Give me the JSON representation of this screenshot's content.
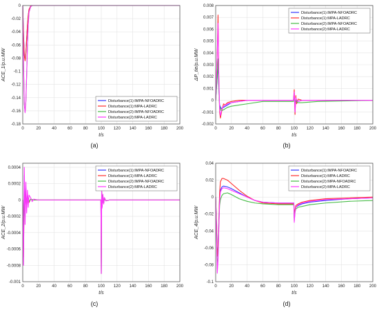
{
  "figure": {
    "colors": {
      "d1_nfoadrc": "#3333ff",
      "d1_ladrc": "#ff2a2a",
      "d2_nfoadrc": "#44bb44",
      "d2_ladrc": "#ff33ff"
    },
    "legend": [
      "Disturbance(1):IMPA-NFOADRC",
      "Disturbance(1):MPA-LADRC",
      "Disturbance(2):IMPA-NFOADRC",
      "Disturbance(2):MPA-LADRC"
    ],
    "legend_b": [
      "Disturbance(1):IMPA-NFOADRC",
      "Disturbance(1):MPA-LADRC",
      "Disturbance(2):IMPA-NFOADRC",
      "Disturbance(2):MPA-LADRC"
    ],
    "legend_d": [
      "Disturbance(1):IMPA-NFOADRC",
      "Disturbance(1):MPA-LADRC",
      "Disturbance(2):MPA-NFOADRC",
      "Disturbance(2):MPA-LADRC"
    ]
  },
  "chart_data": [
    {
      "id": "a",
      "type": "line",
      "caption": "(a)",
      "xlabel": "t/s",
      "ylabel": "ACE_1/p.u.MW",
      "xlim": [
        0,
        200
      ],
      "ylim": [
        -0.18,
        0
      ],
      "xticks": [
        0,
        20,
        40,
        60,
        80,
        100,
        120,
        140,
        160,
        180,
        200
      ],
      "yticks": [
        0,
        -0.02,
        -0.04,
        -0.06,
        -0.08,
        -0.1,
        -0.12,
        -0.14,
        -0.16,
        -0.18
      ],
      "legend_position": "bottom-right",
      "grid": true,
      "series": [
        {
          "name": "Disturbance(1):IMPA-NFOADRC",
          "color": "#3333ff",
          "x": [
            0,
            1,
            2,
            3,
            4,
            5,
            6,
            7,
            8,
            10,
            12,
            15,
            200
          ],
          "y": [
            0,
            -0.045,
            -0.075,
            -0.083,
            -0.072,
            -0.05,
            -0.03,
            -0.015,
            -0.006,
            -0.001,
            0,
            0,
            0
          ]
        },
        {
          "name": "Disturbance(1):MPA-LADRC",
          "color": "#ff2a2a",
          "x": [
            0,
            1,
            2,
            3,
            4,
            5,
            6,
            7,
            8,
            10,
            12,
            15,
            200
          ],
          "y": [
            0,
            -0.046,
            -0.076,
            -0.084,
            -0.073,
            -0.051,
            -0.03,
            -0.015,
            -0.006,
            -0.001,
            0,
            0,
            0
          ]
        },
        {
          "name": "Disturbance(2):IMPA-NFOADRC",
          "color": "#44bb44",
          "x": [
            0,
            1,
            2,
            3,
            4,
            5,
            6,
            7,
            8,
            10,
            12,
            15,
            200
          ],
          "y": [
            0,
            -0.09,
            -0.15,
            -0.162,
            -0.145,
            -0.105,
            -0.06,
            -0.028,
            -0.01,
            -0.002,
            0,
            0,
            0
          ]
        },
        {
          "name": "Disturbance(2):MPA-LADRC",
          "color": "#ff33ff",
          "x": [
            0,
            1,
            2,
            3,
            4,
            5,
            6,
            7,
            8,
            10,
            12,
            15,
            200
          ],
          "y": [
            0,
            -0.09,
            -0.15,
            -0.163,
            -0.146,
            -0.106,
            -0.061,
            -0.028,
            -0.01,
            -0.002,
            0,
            0,
            0
          ]
        }
      ]
    },
    {
      "id": "b",
      "type": "line",
      "caption": "(b)",
      "xlabel": "t/s",
      "ylabel": "ΔP_tie/p.u.MW",
      "xlim": [
        0,
        200
      ],
      "ylim": [
        -0.002,
        0.008
      ],
      "xticks": [
        0,
        20,
        40,
        60,
        80,
        100,
        120,
        140,
        160,
        180,
        200
      ],
      "yticks": [
        0.008,
        0.007,
        0.006,
        0.005,
        0.004,
        0.003,
        0.002,
        0.001,
        0,
        -0.001,
        -0.002
      ],
      "legend_position": "top-right",
      "grid": true,
      "series": [
        {
          "name": "Disturbance(1):IMPA-NFOADRC",
          "color": "#3333ff",
          "x": [
            0,
            2,
            3,
            4,
            5,
            7,
            10,
            15,
            20,
            30,
            40,
            60,
            99,
            100,
            101,
            102,
            104,
            110,
            130,
            200
          ],
          "y": [
            0,
            0.002,
            0.003,
            0.001,
            -0.0004,
            -0.0007,
            -0.0006,
            -0.0004,
            -0.0002,
            -0.0001,
            0,
            0,
            0,
            0.0004,
            -0.0004,
            0.0001,
            -0.0001,
            0,
            0,
            0
          ]
        },
        {
          "name": "Disturbance(1):MPA-LADRC",
          "color": "#ff2a2a",
          "x": [
            0,
            2,
            3,
            4,
            5,
            6,
            8,
            10,
            12,
            15,
            20,
            30,
            40,
            60,
            99,
            100,
            101,
            102,
            103,
            105,
            110,
            130,
            200
          ],
          "y": [
            0,
            0.004,
            0.0072,
            0.002,
            -0.001,
            -0.0015,
            -0.0008,
            -0.0003,
            -0.0004,
            -0.0002,
            -0.0001,
            0,
            0,
            0,
            0,
            0.0009,
            -0.0012,
            0.0004,
            -0.0003,
            0.0001,
            0,
            0,
            0
          ]
        },
        {
          "name": "Disturbance(2):IMPA-NFOADRC",
          "color": "#44bb44",
          "x": [
            0,
            2,
            3,
            4,
            5,
            7,
            10,
            15,
            20,
            30,
            40,
            60,
            99,
            100,
            101,
            102,
            104,
            110,
            130,
            200
          ],
          "y": [
            0,
            0.002,
            0.0035,
            0.001,
            -0.0005,
            -0.0009,
            -0.0008,
            -0.0006,
            -0.0005,
            -0.0004,
            -0.0003,
            -0.0001,
            -0.0001,
            0.0004,
            -0.0005,
            0,
            -0.0002,
            -0.0002,
            -0.0001,
            0
          ]
        },
        {
          "name": "Disturbance(2):MPA-LADRC",
          "color": "#ff33ff",
          "x": [
            0,
            2,
            3,
            4,
            5,
            6,
            8,
            10,
            15,
            20,
            30,
            40,
            60,
            99,
            100,
            101,
            102,
            104,
            110,
            130,
            200
          ],
          "y": [
            0,
            0.004,
            0.0065,
            0.002,
            -0.0008,
            -0.0013,
            -0.0007,
            -0.0005,
            -0.0003,
            -0.0002,
            -0.0001,
            0,
            0,
            0,
            0.0007,
            -0.001,
            0.0002,
            -0.0001,
            0,
            0,
            0
          ]
        }
      ]
    },
    {
      "id": "c",
      "type": "line",
      "caption": "(c)",
      "xlabel": "t/s",
      "ylabel": "ACE_2/p.u.MW",
      "xlim": [
        0,
        200
      ],
      "ylim": [
        -0.001,
        0.00045
      ],
      "xticks": [
        0,
        20,
        40,
        60,
        80,
        100,
        120,
        140,
        160,
        180,
        200
      ],
      "yticks": [
        0.0004,
        0.0002,
        0,
        -0.0002,
        -0.0004,
        -0.0006,
        -0.0008,
        -0.001
      ],
      "legend_position": "top-right",
      "grid": true,
      "series": [
        {
          "name": "Disturbance(1):IMPA-NFOADRC",
          "color": "#3333ff",
          "x": [
            0,
            1,
            2,
            3,
            4,
            5,
            6,
            8,
            10,
            14,
            20,
            99.5,
            100,
            100.5,
            101,
            102,
            103,
            104,
            106,
            110,
            200
          ],
          "y": [
            0,
            -0.0006,
            0.0003,
            -0.0002,
            0.00015,
            -0.0001,
            6e-05,
            -3e-05,
            1e-05,
            0,
            0,
            0,
            -0.0009,
            0.0001,
            -8e-05,
            6e-05,
            -4e-05,
            2e-05,
            -1e-05,
            0,
            0
          ]
        },
        {
          "name": "Disturbance(1):MPA-LADRC",
          "color": "#ff2a2a",
          "x": [
            0,
            1,
            2,
            3,
            4,
            5,
            6,
            8,
            10,
            14,
            20,
            99.5,
            100,
            100.5,
            101,
            102,
            103,
            104,
            106,
            110,
            200
          ],
          "y": [
            0,
            -0.0007,
            0.0002,
            -0.00015,
            0.0001,
            -8e-05,
            5e-05,
            -3e-05,
            1e-05,
            0,
            0,
            0,
            -0.0009,
            0.0001,
            -8e-05,
            6e-05,
            -4e-05,
            2e-05,
            -1e-05,
            0,
            0
          ]
        },
        {
          "name": "Disturbance(2):MPA-NFOADRC",
          "color": "#44bb44",
          "x": [
            0,
            1,
            2,
            3,
            4,
            5,
            6,
            8,
            10,
            14,
            20,
            99.5,
            100,
            100.5,
            101,
            102,
            103,
            104,
            106,
            110,
            200
          ],
          "y": [
            0,
            -0.0005,
            0.0001,
            -0.0001,
            8e-05,
            -6e-05,
            4e-05,
            -2e-05,
            1e-05,
            0,
            0,
            0,
            -0.0009,
            0.0001,
            -8e-05,
            6e-05,
            -4e-05,
            2e-05,
            -1e-05,
            0,
            0
          ]
        },
        {
          "name": "Disturbance(2):MPA-LADRC",
          "color": "#ff33ff",
          "x": [
            0,
            1,
            2,
            3,
            4,
            5,
            6,
            7,
            8,
            10,
            12,
            14,
            20,
            99.5,
            100,
            100.5,
            101,
            102,
            103,
            104,
            106,
            110,
            200
          ],
          "y": [
            0,
            -0.0008,
            0.0004,
            -0.0003,
            0.00022,
            -0.00016,
            0.00012,
            -9e-05,
            6e-05,
            3e-05,
            -2e-05,
            1e-05,
            0,
            0,
            -0.0009,
            0.00012,
            -0.0001,
            7e-05,
            -5e-05,
            3e-05,
            -1e-05,
            0,
            0
          ]
        }
      ]
    },
    {
      "id": "d",
      "type": "line",
      "caption": "(d)",
      "xlabel": "t/s",
      "ylabel": "ACE_4/p.u.MW",
      "xlim": [
        0,
        200
      ],
      "ylim": [
        -0.1,
        0.04
      ],
      "xticks": [
        0,
        20,
        40,
        60,
        80,
        100,
        120,
        140,
        160,
        180,
        200
      ],
      "yticks": [
        0.04,
        0.02,
        0,
        -0.02,
        -0.04,
        -0.06,
        -0.08,
        -0.1
      ],
      "legend_position": "top-right",
      "grid": true,
      "series": [
        {
          "name": "Disturbance(1):IMPA-NFOADRC",
          "color": "#3333ff",
          "x": [
            0,
            1,
            2,
            3,
            4,
            5,
            6,
            8,
            10,
            15,
            20,
            30,
            40,
            50,
            60,
            80,
            99.5,
            100,
            101,
            102,
            105,
            110,
            120,
            140,
            170,
            200
          ],
          "y": [
            0,
            -0.03,
            -0.07,
            -0.06,
            -0.03,
            0,
            0.008,
            0.012,
            0.013,
            0.012,
            0.01,
            0.005,
            0,
            -0.004,
            -0.006,
            -0.007,
            -0.007,
            -0.025,
            -0.016,
            -0.012,
            -0.01,
            -0.008,
            -0.006,
            -0.004,
            -0.002,
            -0.001
          ]
        },
        {
          "name": "Disturbance(1):MPA-LADRC",
          "color": "#ff2a2a",
          "x": [
            0,
            1,
            2,
            3,
            4,
            5,
            6,
            8,
            10,
            15,
            20,
            30,
            40,
            50,
            60,
            80,
            99.5,
            100,
            101,
            102,
            105,
            110,
            120,
            140,
            170,
            200
          ],
          "y": [
            0,
            -0.03,
            -0.07,
            -0.06,
            -0.03,
            0.005,
            0.018,
            0.022,
            0.022,
            0.02,
            0.016,
            0.008,
            0.001,
            -0.004,
            -0.007,
            -0.008,
            -0.008,
            -0.025,
            -0.015,
            -0.01,
            -0.008,
            -0.006,
            -0.004,
            -0.002,
            -0.001,
            0
          ]
        },
        {
          "name": "Disturbance(2):MPA-NFOADRC",
          "color": "#44bb44",
          "x": [
            0,
            1,
            2,
            3,
            4,
            5,
            6,
            8,
            10,
            15,
            20,
            30,
            40,
            50,
            60,
            80,
            99.5,
            100,
            101,
            102,
            105,
            110,
            120,
            140,
            170,
            200
          ],
          "y": [
            0,
            -0.04,
            -0.085,
            -0.07,
            -0.035,
            -0.01,
            -0.003,
            0.002,
            0.004,
            0.005,
            0.003,
            -0.002,
            -0.005,
            -0.007,
            -0.008,
            -0.009,
            -0.009,
            -0.028,
            -0.018,
            -0.014,
            -0.012,
            -0.011,
            -0.009,
            -0.007,
            -0.005,
            -0.004
          ]
        },
        {
          "name": "Disturbance(2):MPA-LADRC",
          "color": "#ff33ff",
          "x": [
            0,
            1,
            2,
            3,
            4,
            5,
            6,
            8,
            10,
            15,
            20,
            30,
            40,
            50,
            60,
            80,
            99.5,
            100,
            101,
            102,
            105,
            110,
            120,
            140,
            170,
            200
          ],
          "y": [
            0,
            -0.04,
            -0.09,
            -0.075,
            -0.04,
            -0.005,
            0.006,
            0.01,
            0.011,
            0.01,
            0.008,
            0.004,
            0,
            -0.004,
            -0.006,
            -0.007,
            -0.007,
            -0.03,
            -0.018,
            -0.012,
            -0.009,
            -0.007,
            -0.005,
            -0.003,
            -0.002,
            -0.001
          ]
        }
      ]
    }
  ]
}
